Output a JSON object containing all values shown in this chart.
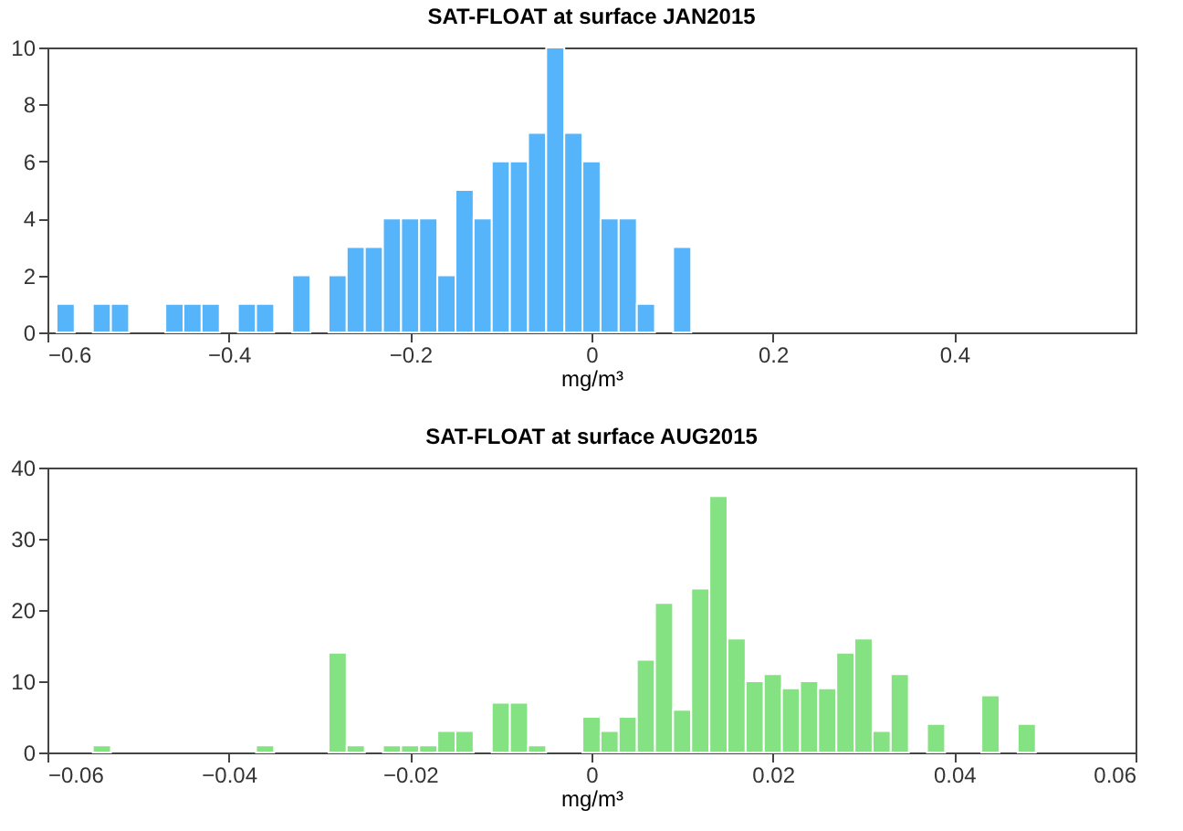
{
  "chart_data": [
    {
      "type": "histogram",
      "title": "SAT-FLOAT at surface JAN2015",
      "xlabel": "mg/m³",
      "color": "#56b4fb",
      "grid": false,
      "bins": [
        -0.59,
        -0.57,
        -0.55,
        -0.53,
        -0.51,
        -0.49,
        -0.47,
        -0.45,
        -0.43,
        -0.41,
        -0.39,
        -0.37,
        -0.35,
        -0.33,
        -0.31,
        -0.29,
        -0.27,
        -0.25,
        -0.23,
        -0.21,
        -0.19,
        -0.17,
        -0.15,
        -0.13,
        -0.11,
        -0.09,
        -0.07,
        -0.05,
        -0.03,
        -0.01,
        0.01,
        0.03,
        0.05,
        0.07,
        0.09,
        0.11
      ],
      "values": [
        1,
        0,
        1,
        1,
        0,
        0,
        1,
        1,
        1,
        0,
        1,
        1,
        0,
        2,
        0,
        2,
        3,
        3,
        4,
        4,
        4,
        2,
        5,
        4,
        6,
        6,
        7,
        10,
        7,
        6,
        4,
        4,
        1,
        0,
        3
      ],
      "xlim": [
        -0.6,
        0.6
      ],
      "xticks": [
        -0.6,
        -0.4,
        -0.2,
        0,
        0.2,
        0.4
      ],
      "ylim": [
        0,
        10
      ],
      "yticks": [
        0,
        2,
        4,
        6,
        8,
        10
      ]
    },
    {
      "type": "histogram",
      "title": "SAT-FLOAT at surface AUG2015",
      "xlabel": "mg/m³",
      "color": "#84e282",
      "grid": false,
      "bins": [
        -0.055,
        -0.053,
        -0.051,
        -0.049,
        -0.047,
        -0.045,
        -0.043,
        -0.041,
        -0.039,
        -0.037,
        -0.035,
        -0.033,
        -0.031,
        -0.029,
        -0.027,
        -0.025,
        -0.023,
        -0.021,
        -0.019,
        -0.017,
        -0.015,
        -0.013,
        -0.011,
        -0.009,
        -0.007,
        -0.005,
        -0.003,
        -0.001,
        0.001,
        0.003,
        0.005,
        0.007,
        0.009,
        0.011,
        0.013,
        0.015,
        0.017,
        0.019,
        0.021,
        0.023,
        0.025,
        0.027,
        0.029,
        0.031,
        0.033,
        0.035,
        0.037,
        0.039,
        0.041,
        0.043,
        0.045,
        0.047,
        0.049
      ],
      "values": [
        1,
        0,
        0,
        0,
        0,
        0,
        0,
        0,
        0,
        1,
        0,
        0,
        0,
        14,
        1,
        0,
        1,
        1,
        1,
        3,
        3,
        0,
        7,
        7,
        1,
        0,
        0,
        5,
        3,
        5,
        13,
        21,
        6,
        23,
        36,
        16,
        10,
        11,
        9,
        10,
        9,
        14,
        16,
        3,
        11,
        0,
        4,
        0,
        0,
        8,
        0,
        4
      ],
      "xlim": [
        -0.06,
        0.06
      ],
      "xticks": [
        -0.06,
        -0.04,
        -0.02,
        0,
        0.02,
        0.04,
        0.06
      ],
      "ylim": [
        0,
        40
      ],
      "yticks": [
        0,
        10,
        20,
        30,
        40
      ]
    }
  ]
}
